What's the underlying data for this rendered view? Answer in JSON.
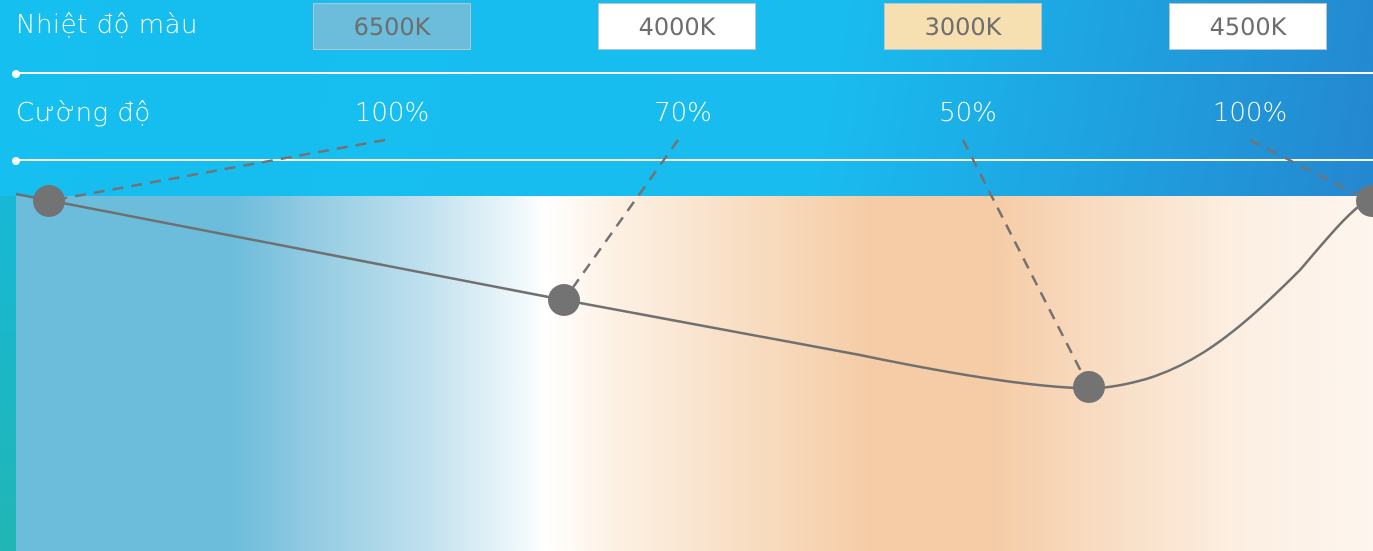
{
  "rows": {
    "temperature_label": "Nhiệt độ màu",
    "intensity_label": "Cường độ"
  },
  "temperatures": [
    {
      "value": "6500K",
      "color": "#6cbcdb"
    },
    {
      "value": "4000K",
      "color": "#ffffff"
    },
    {
      "value": "3000K",
      "color": "#f6dfb0"
    },
    {
      "value": "4500K",
      "color": "#ffffff"
    }
  ],
  "intensities": [
    "100%",
    "70%",
    "50%",
    "100%"
  ],
  "colors": {
    "header": "#16bdef",
    "curve": "#707070",
    "point": "#737373"
  }
}
